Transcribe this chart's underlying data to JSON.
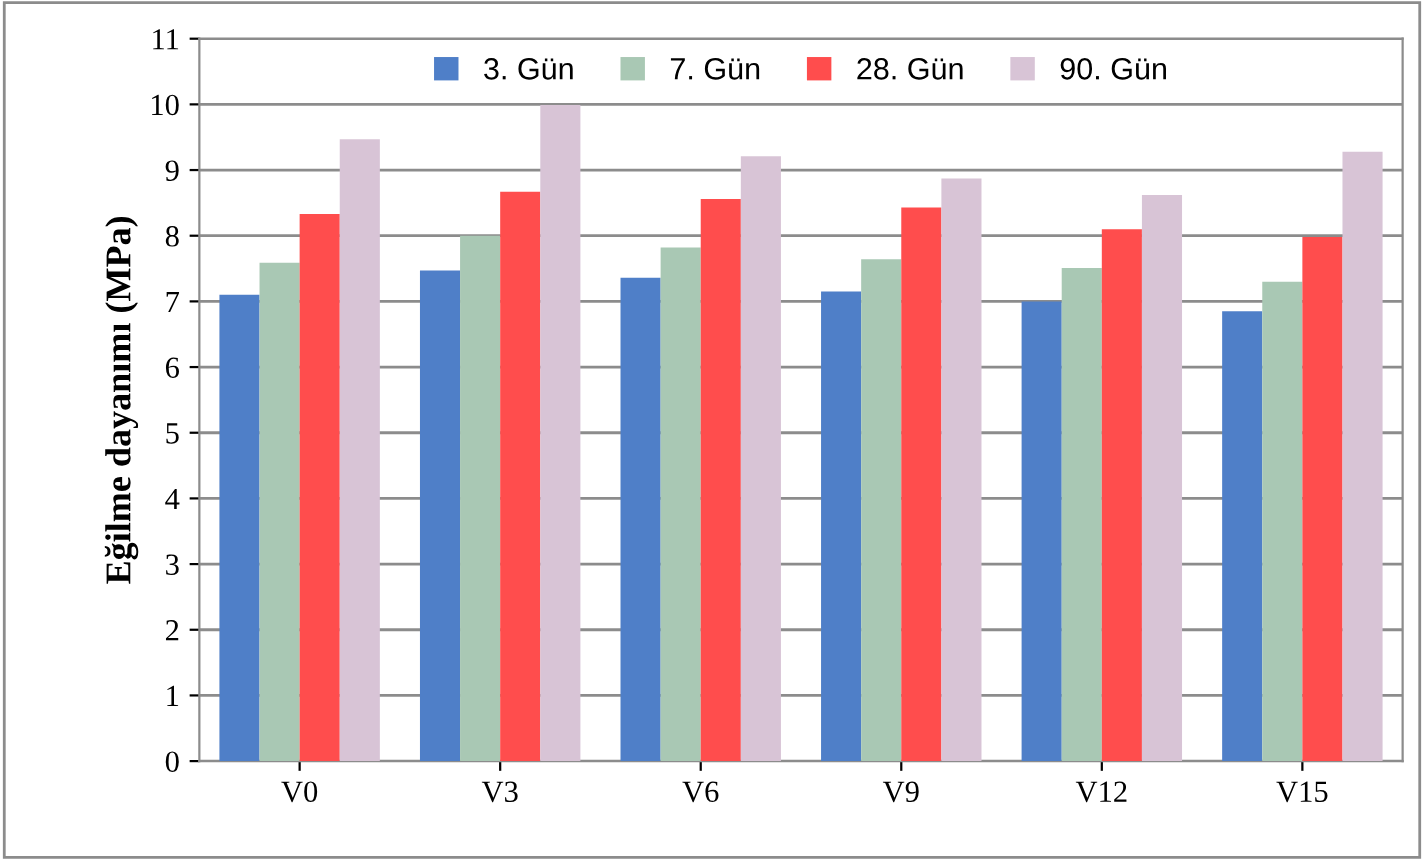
{
  "chart_data": {
    "type": "bar",
    "ylabel": "Eğilme dayanımı (MPa)",
    "categories": [
      "V0",
      "V3",
      "V6",
      "V9",
      "V12",
      "V15"
    ],
    "series": [
      {
        "name": "3. Gün",
        "color": "#4f7fc8",
        "values": [
          7.1,
          7.47,
          7.36,
          7.15,
          7.0,
          6.85
        ]
      },
      {
        "name": "7. Gün",
        "color": "#a9c8b4",
        "values": [
          7.59,
          8.0,
          7.82,
          7.64,
          7.51,
          7.3
        ]
      },
      {
        "name": "28. Gün",
        "color": "#ff4d4d",
        "values": [
          8.33,
          8.67,
          8.56,
          8.43,
          8.1,
          7.98
        ]
      },
      {
        "name": "90. Gün",
        "color": "#d8c4d6",
        "values": [
          9.47,
          9.99,
          9.21,
          8.87,
          8.62,
          9.28
        ]
      }
    ],
    "ylim": [
      0,
      11
    ],
    "yticks": [
      0,
      1,
      2,
      3,
      4,
      5,
      6,
      7,
      8,
      9,
      10,
      11
    ],
    "grid": "y",
    "legend": "top"
  }
}
